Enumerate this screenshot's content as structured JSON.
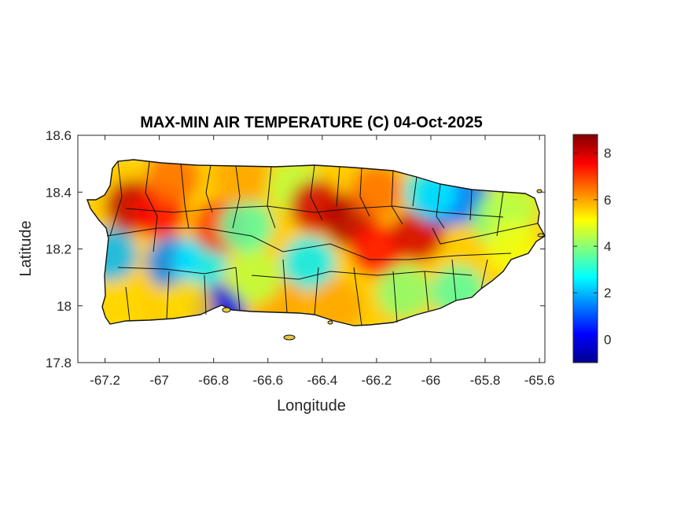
{
  "chart_data": {
    "type": "heatmap",
    "title": "MAX-MIN AIR TEMPERATURE (C) 04-Oct-2025",
    "xlabel": "Longitude",
    "ylabel": "Latitude",
    "xlim": [
      -67.3,
      -65.58
    ],
    "ylim": [
      17.8,
      18.6
    ],
    "x_ticks": [
      -67.2,
      -67,
      -66.8,
      -66.6,
      -66.4,
      -66.2,
      -66,
      -65.8,
      -65.6
    ],
    "x_tick_labels": [
      "-67.2",
      "-67",
      "-66.8",
      "-66.6",
      "-66.4",
      "-66.2",
      "-66",
      "-65.8",
      "-65.6"
    ],
    "y_ticks": [
      17.8,
      18,
      18.2,
      18.4,
      18.6
    ],
    "y_tick_labels": [
      "17.8",
      "18",
      "18.2",
      "18.4",
      "18.6"
    ],
    "colorbar": {
      "colormap": "jet",
      "range": [
        -1,
        8.8
      ],
      "ticks": [
        0,
        2,
        4,
        6,
        8
      ],
      "tick_labels": [
        "0",
        "2",
        "4",
        "6",
        "8"
      ]
    },
    "grid": false,
    "field_samples": [
      {
        "lon": -67.1,
        "lat": 18.35,
        "value": 8.2
      },
      {
        "lon": -67.0,
        "lat": 18.33,
        "value": 7.5
      },
      {
        "lon": -67.18,
        "lat": 18.18,
        "value": 2.0
      },
      {
        "lon": -66.95,
        "lat": 18.15,
        "value": 1.5
      },
      {
        "lon": -66.85,
        "lat": 18.15,
        "value": 2.5
      },
      {
        "lon": -66.78,
        "lat": 17.98,
        "value": 0.2
      },
      {
        "lon": -66.78,
        "lat": 18.28,
        "value": 7.0
      },
      {
        "lon": -66.68,
        "lat": 18.28,
        "value": 3.5
      },
      {
        "lon": -66.5,
        "lat": 18.42,
        "value": 4.5
      },
      {
        "lon": -66.42,
        "lat": 18.35,
        "value": 8.0
      },
      {
        "lon": -66.3,
        "lat": 18.3,
        "value": 8.3
      },
      {
        "lon": -66.2,
        "lat": 18.4,
        "value": 6.5
      },
      {
        "lon": -66.2,
        "lat": 18.2,
        "value": 7.5
      },
      {
        "lon": -66.05,
        "lat": 18.25,
        "value": 8.0
      },
      {
        "lon": -65.95,
        "lat": 18.37,
        "value": 1.0
      },
      {
        "lon": -65.88,
        "lat": 18.38,
        "value": 1.5
      },
      {
        "lon": -66.0,
        "lat": 18.4,
        "value": 2.5
      },
      {
        "lon": -65.75,
        "lat": 18.3,
        "value": 4.0
      },
      {
        "lon": -65.7,
        "lat": 18.35,
        "value": 4.5
      },
      {
        "lon": -66.1,
        "lat": 18.05,
        "value": 4.0
      },
      {
        "lon": -65.9,
        "lat": 18.05,
        "value": 3.5
      },
      {
        "lon": -66.45,
        "lat": 18.15,
        "value": 2.5
      },
      {
        "lon": -66.55,
        "lat": 18.0,
        "value": 6.0
      },
      {
        "lon": -66.35,
        "lat": 18.0,
        "value": 6.0
      },
      {
        "lon": -67.15,
        "lat": 18.0,
        "value": 5.5
      },
      {
        "lon": -66.9,
        "lat": 18.0,
        "value": 5.5
      },
      {
        "lon": -66.65,
        "lat": 18.1,
        "value": 4.5
      },
      {
        "lon": -66.7,
        "lat": 18.45,
        "value": 6.0
      },
      {
        "lon": -66.95,
        "lat": 18.45,
        "value": 6.5
      },
      {
        "lon": -65.7,
        "lat": 18.2,
        "value": 5.0
      }
    ]
  }
}
